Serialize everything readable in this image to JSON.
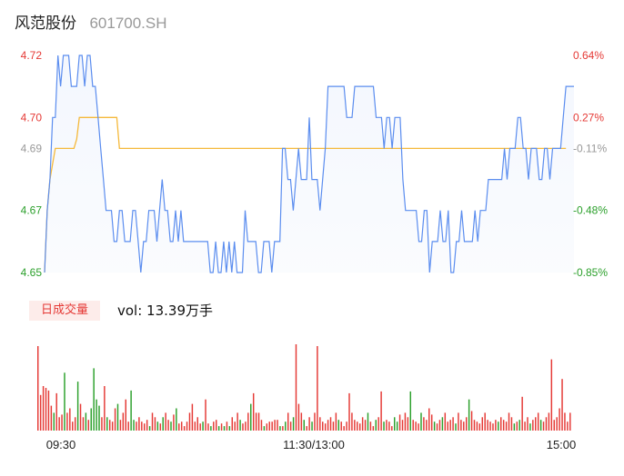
{
  "header": {
    "name": "风范股份",
    "code": "601700.SH"
  },
  "colors": {
    "price_line": "#5b8def",
    "avg_line": "#f5b93b",
    "up": "#e53935",
    "down": "#2ca02c",
    "neutral": "#999999"
  },
  "volume": {
    "badge": "日成交量",
    "label": "vol: 13.39万手"
  },
  "chart_data": [
    {
      "type": "line",
      "title": "",
      "x_ticks": [
        "09:30",
        "11:30/13:00",
        "15:00"
      ],
      "ylim": [
        4.65,
        4.72
      ],
      "y_ticks": [
        {
          "price": 4.72,
          "label": "4.72",
          "pct": "0.64%",
          "dir": "up"
        },
        {
          "price": 4.7,
          "label": "4.70",
          "pct": "0.27%",
          "dir": "up"
        },
        {
          "price": 4.69,
          "label": "4.69",
          "pct": "-0.11%",
          "dir": "neutral"
        },
        {
          "price": 4.67,
          "label": "4.67",
          "pct": "-0.48%",
          "dir": "down"
        },
        {
          "price": 4.65,
          "label": "4.65",
          "pct": "-0.85%",
          "dir": "down"
        }
      ],
      "series": [
        {
          "role": "price",
          "values": [
            4.65,
            4.67,
            4.68,
            4.7,
            4.7,
            4.72,
            4.71,
            4.72,
            4.72,
            4.72,
            4.71,
            4.71,
            4.71,
            4.72,
            4.72,
            4.71,
            4.72,
            4.72,
            4.71,
            4.71,
            4.7,
            4.69,
            4.68,
            4.67,
            4.67,
            4.67,
            4.66,
            4.66,
            4.67,
            4.67,
            4.66,
            4.66,
            4.66,
            4.67,
            4.67,
            4.66,
            4.65,
            4.66,
            4.66,
            4.67,
            4.67,
            4.67,
            4.66,
            4.67,
            4.68,
            4.67,
            4.67,
            4.66,
            4.66,
            4.67,
            4.66,
            4.67,
            4.66,
            4.66,
            4.66,
            4.66,
            4.66,
            4.66,
            4.66,
            4.66,
            4.66,
            4.66,
            4.65,
            4.65,
            4.66,
            4.65,
            4.65,
            4.66,
            4.65,
            4.66,
            4.65,
            4.66,
            4.65,
            4.65,
            4.65,
            4.67,
            4.66,
            4.66,
            4.66,
            4.66,
            4.65,
            4.65,
            4.66,
            4.66,
            4.66,
            4.65,
            4.66,
            4.66,
            4.66,
            4.69,
            4.69,
            4.68,
            4.68,
            4.67,
            4.68,
            4.69,
            4.68,
            4.68,
            4.68,
            4.7,
            4.68,
            4.68,
            4.68,
            4.67,
            4.68,
            4.69,
            4.71,
            4.71,
            4.71,
            4.71,
            4.71,
            4.71,
            4.71,
            4.7,
            4.7,
            4.7,
            4.71,
            4.71,
            4.71,
            4.71,
            4.71,
            4.71,
            4.71,
            4.71,
            4.7,
            4.7,
            4.7,
            4.69,
            4.7,
            4.7,
            4.69,
            4.7,
            4.7,
            4.7,
            4.68,
            4.67,
            4.67,
            4.67,
            4.67,
            4.67,
            4.66,
            4.66,
            4.67,
            4.67,
            4.65,
            4.66,
            4.66,
            4.66,
            4.67,
            4.66,
            4.66,
            4.67,
            4.65,
            4.65,
            4.66,
            4.66,
            4.67,
            4.66,
            4.66,
            4.66,
            4.66,
            4.67,
            4.66,
            4.67,
            4.67,
            4.67,
            4.68,
            4.68,
            4.68,
            4.68,
            4.68,
            4.68,
            4.69,
            4.68,
            4.69,
            4.69,
            4.69,
            4.7,
            4.7,
            4.69,
            4.69,
            4.68,
            4.69,
            4.69,
            4.69,
            4.68,
            4.68,
            4.69,
            4.69,
            4.68,
            4.69,
            4.69,
            4.69,
            4.69,
            4.7,
            4.71,
            4.71,
            4.71,
            4.71
          ]
        },
        {
          "role": "average",
          "values": [
            4.65,
            4.67,
            4.68,
            4.685,
            4.69,
            4.69,
            4.69,
            4.69,
            4.69,
            4.69,
            4.69,
            4.69,
            4.693,
            4.7,
            4.7,
            4.7,
            4.7,
            4.7,
            4.7,
            4.7,
            4.7,
            4.7,
            4.7,
            4.7,
            4.7,
            4.7,
            4.7,
            4.7,
            4.69,
            4.69,
            4.69,
            4.69,
            4.69,
            4.69,
            4.69,
            4.69,
            4.69,
            4.69,
            4.69,
            4.69,
            4.69,
            4.69,
            4.69,
            4.69,
            4.69,
            4.69,
            4.69,
            4.69,
            4.69,
            4.69,
            4.69,
            4.69,
            4.69,
            4.69,
            4.69,
            4.69,
            4.69,
            4.69,
            4.69,
            4.69,
            4.69,
            4.69,
            4.69,
            4.69,
            4.69,
            4.69,
            4.69,
            4.69,
            4.69,
            4.69,
            4.69,
            4.69,
            4.69,
            4.69,
            4.69,
            4.69,
            4.69,
            4.69,
            4.69,
            4.69,
            4.69,
            4.69,
            4.69,
            4.69,
            4.69,
            4.69,
            4.69,
            4.69,
            4.69,
            4.69,
            4.69,
            4.69,
            4.69,
            4.69,
            4.69,
            4.69,
            4.69,
            4.69,
            4.69,
            4.69,
            4.69,
            4.69,
            4.69,
            4.69,
            4.69,
            4.69,
            4.69,
            4.69,
            4.69,
            4.69,
            4.69,
            4.69,
            4.69,
            4.69,
            4.69,
            4.69,
            4.69,
            4.69,
            4.69,
            4.69,
            4.69,
            4.69,
            4.69,
            4.69,
            4.69,
            4.69,
            4.69,
            4.69,
            4.69,
            4.69,
            4.69,
            4.69,
            4.69,
            4.69,
            4.69,
            4.69,
            4.69,
            4.69,
            4.69,
            4.69,
            4.69,
            4.69,
            4.69,
            4.69,
            4.69,
            4.69,
            4.69,
            4.69,
            4.69,
            4.69,
            4.69,
            4.69,
            4.69,
            4.69,
            4.69,
            4.69,
            4.69,
            4.69,
            4.69,
            4.69,
            4.69,
            4.69,
            4.69,
            4.69,
            4.69,
            4.69,
            4.69,
            4.69,
            4.69,
            4.69,
            4.69,
            4.69,
            4.69,
            4.69,
            4.69,
            4.69,
            4.69,
            4.69,
            4.69,
            4.69,
            4.69,
            4.69,
            4.69,
            4.69,
            4.69,
            4.69,
            4.69,
            4.69,
            4.69,
            4.69,
            4.69,
            4.69,
            4.69,
            4.69,
            4.69,
            4.69
          ]
        }
      ]
    },
    {
      "type": "bar",
      "title": "",
      "unit": "relative",
      "values": [
        0.95,
        0.4,
        0.5,
        0.48,
        0.45,
        0.28,
        0.2,
        0.42,
        0.15,
        0.18,
        0.65,
        0.2,
        0.25,
        0.1,
        0.15,
        0.55,
        0.3,
        0.15,
        0.2,
        0.12,
        0.25,
        0.7,
        0.35,
        0.28,
        0.15,
        0.5,
        0.15,
        0.12,
        0.1,
        0.25,
        0.3,
        0.12,
        0.2,
        0.35,
        0.1,
        0.45,
        0.12,
        0.1,
        0.15,
        0.1,
        0.08,
        0.12,
        0.05,
        0.2,
        0.15,
        0.1,
        0.08,
        0.15,
        0.2,
        0.12,
        0.1,
        0.18,
        0.25,
        0.08,
        0.1,
        0.05,
        0.1,
        0.2,
        0.3,
        0.1,
        0.15,
        0.08,
        0.1,
        0.35,
        0.08,
        0.05,
        0.1,
        0.12,
        0.05,
        0.08,
        0.05,
        0.1,
        0.05,
        0.15,
        0.1,
        0.2,
        0.12,
        0.08,
        0.1,
        0.2,
        0.3,
        0.42,
        0.2,
        0.2,
        0.12,
        0.05,
        0.08,
        0.1,
        0.1,
        0.12,
        0.12,
        0.05,
        0.05,
        0.1,
        0.2,
        0.1,
        0.15,
        0.97,
        0.3,
        0.2,
        0.12,
        0.05,
        0.15,
        0.1,
        0.2,
        0.95,
        0.15,
        0.1,
        0.08,
        0.12,
        0.15,
        0.1,
        0.2,
        0.12,
        0.1,
        0.05,
        0.1,
        0.42,
        0.2,
        0.12,
        0.1,
        0.08,
        0.15,
        0.12,
        0.2,
        0.1,
        0.05,
        0.12,
        0.15,
        0.44,
        0.1,
        0.12,
        0.1,
        0.05,
        0.15,
        0.1,
        0.18,
        0.12,
        0.2,
        0.15,
        0.44,
        0.12,
        0.1,
        0.08,
        0.2,
        0.15,
        0.12,
        0.25,
        0.18,
        0.1,
        0.08,
        0.12,
        0.15,
        0.2,
        0.1,
        0.12,
        0.15,
        0.08,
        0.2,
        0.12,
        0.1,
        0.15,
        0.35,
        0.22,
        0.12,
        0.1,
        0.08,
        0.15,
        0.2,
        0.12,
        0.1,
        0.08,
        0.12,
        0.1,
        0.15,
        0.12,
        0.1,
        0.2,
        0.15,
        0.08,
        0.1,
        0.12,
        0.38,
        0.1,
        0.15,
        0.08,
        0.12,
        0.15,
        0.2,
        0.12,
        0.1,
        0.15,
        0.2,
        0.8,
        0.12,
        0.15,
        0.25,
        0.58,
        0.2,
        0.1,
        0.2
      ]
    }
  ]
}
